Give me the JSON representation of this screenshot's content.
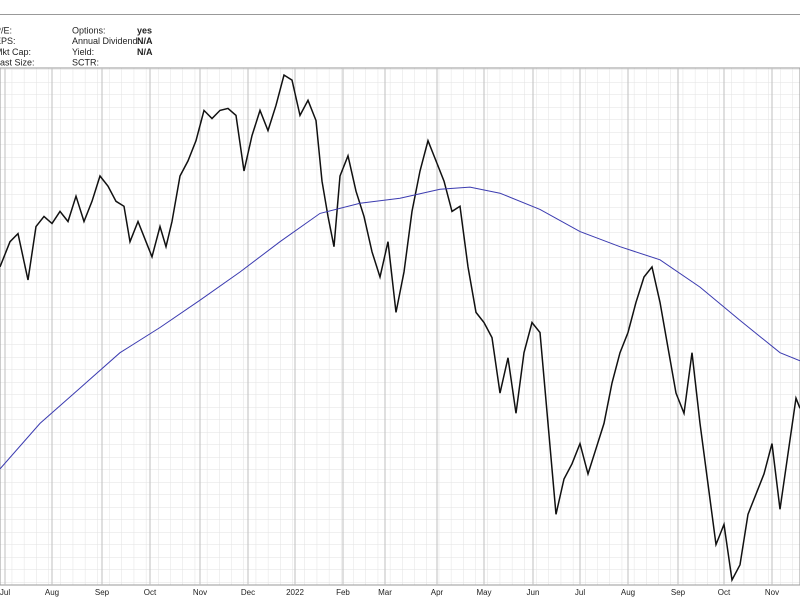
{
  "header": {
    "info": [
      {
        "label": "P/E:"
      },
      {
        "label": "EPS:"
      },
      {
        "label": "Mkt Cap:"
      },
      {
        "label": "Last Size:"
      },
      {
        "label": "Options:",
        "value": "yes"
      },
      {
        "label": "Annual Dividend:",
        "value": "N/A"
      },
      {
        "label": "Yield:",
        "value": "N/A"
      },
      {
        "label": "SCTR:"
      }
    ]
  },
  "chart_data": {
    "type": "line",
    "xlim": [
      0,
      800
    ],
    "ylim": [
      20,
      530
    ],
    "xticks": [
      {
        "value": 5,
        "label": "Jul"
      },
      {
        "value": 52,
        "label": "Aug"
      },
      {
        "value": 102,
        "label": "Sep"
      },
      {
        "value": 150,
        "label": "Oct"
      },
      {
        "value": 200,
        "label": "Nov"
      },
      {
        "value": 248,
        "label": "Dec"
      },
      {
        "value": 295,
        "label": "2022"
      },
      {
        "value": 343,
        "label": "Feb"
      },
      {
        "value": 385,
        "label": "Mar"
      },
      {
        "value": 437,
        "label": "Apr"
      },
      {
        "value": 484,
        "label": "May"
      },
      {
        "value": 533,
        "label": "Jun"
      },
      {
        "value": 580,
        "label": "Jul"
      },
      {
        "value": 628,
        "label": "Aug"
      },
      {
        "value": 678,
        "label": "Sep"
      },
      {
        "value": 724,
        "label": "Oct"
      },
      {
        "value": 772,
        "label": "Nov"
      }
    ],
    "grid": true,
    "series": [
      {
        "color": "#111111",
        "x": [
          0,
          10,
          18,
          28,
          36,
          44,
          52,
          60,
          68,
          76,
          84,
          92,
          100,
          108,
          116,
          124,
          130,
          138,
          146,
          152,
          160,
          166,
          172,
          180,
          188,
          196,
          204,
          212,
          220,
          228,
          236,
          244,
          252,
          260,
          268,
          276,
          284,
          292,
          300,
          308,
          316,
          322,
          328,
          334,
          340,
          348,
          356,
          364,
          372,
          380,
          388,
          396,
          404,
          412,
          420,
          428,
          436,
          444,
          452,
          460,
          468,
          476,
          484,
          492,
          500,
          508,
          516,
          524,
          532,
          540,
          548,
          556,
          564,
          572,
          580,
          588,
          596,
          604,
          612,
          620,
          628,
          636,
          644,
          652,
          660,
          668,
          676,
          684,
          692,
          700,
          708,
          716,
          724,
          732,
          740,
          748,
          756,
          764,
          772,
          780,
          788,
          796,
          800
        ],
        "values": [
          335,
          360,
          368,
          322,
          375,
          385,
          378,
          390,
          380,
          405,
          380,
          400,
          425,
          415,
          400,
          395,
          360,
          380,
          360,
          345,
          375,
          355,
          380,
          425,
          440,
          460,
          490,
          482,
          490,
          492,
          485,
          430,
          465,
          490,
          470,
          495,
          525,
          520,
          485,
          500,
          480,
          420,
          385,
          355,
          425,
          445,
          410,
          385,
          350,
          325,
          360,
          290,
          330,
          390,
          430,
          460,
          440,
          420,
          390,
          395,
          335,
          290,
          280,
          265,
          210,
          245,
          190,
          250,
          280,
          270,
          180,
          90,
          125,
          140,
          160,
          130,
          155,
          180,
          220,
          250,
          270,
          300,
          325,
          335,
          300,
          255,
          210,
          190,
          250,
          180,
          120,
          60,
          80,
          25,
          40,
          90,
          110,
          130,
          160,
          95,
          150,
          205,
          195
        ]
      },
      {
        "color": "#3b3bb0",
        "x": [
          0,
          40,
          80,
          120,
          160,
          200,
          240,
          280,
          320,
          360,
          400,
          440,
          470,
          500,
          540,
          580,
          620,
          660,
          700,
          740,
          780,
          800
        ],
        "values": [
          135,
          180,
          215,
          250,
          275,
          302,
          330,
          360,
          388,
          398,
          403,
          412,
          414,
          408,
          392,
          370,
          355,
          342,
          315,
          282,
          250,
          242
        ]
      }
    ]
  }
}
